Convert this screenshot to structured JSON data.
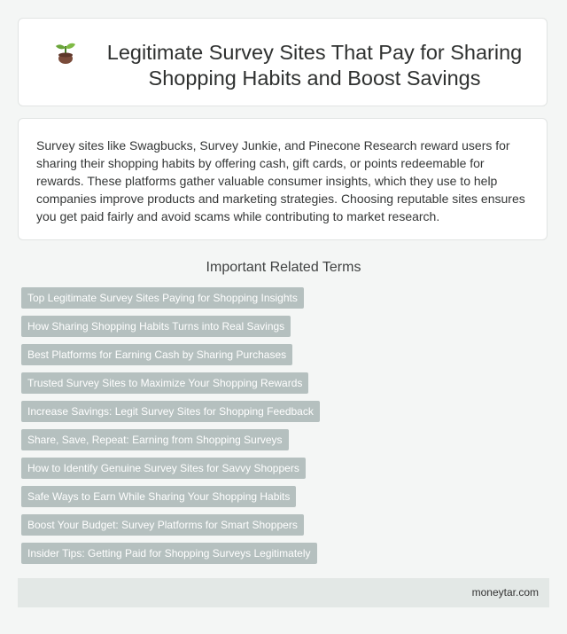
{
  "header": {
    "icon": "sprout-icon",
    "title": "Legitimate Survey Sites That Pay for Sharing Shopping Habits and Boost Savings"
  },
  "intro": {
    "text": "Survey sites like Swagbucks, Survey Junkie, and Pinecone Research reward users for sharing their shopping habits by offering cash, gift cards, or points redeemable for rewards. These platforms gather valuable consumer insights, which they use to help companies improve products and marketing strategies. Choosing reputable sites ensures you get paid fairly and avoid scams while contributing to market research."
  },
  "related": {
    "heading": "Important Related Terms",
    "terms": [
      "Top Legitimate Survey Sites Paying for Shopping Insights",
      "How Sharing Shopping Habits Turns into Real Savings",
      "Best Platforms for Earning Cash by Sharing Purchases",
      "Trusted Survey Sites to Maximize Your Shopping Rewards",
      "Increase Savings: Legit Survey Sites for Shopping Feedback",
      "Share, Save, Repeat: Earning from Shopping Surveys",
      "How to Identify Genuine Survey Sites for Savvy Shoppers",
      "Safe Ways to Earn While Sharing Your Shopping Habits",
      "Boost Your Budget: Survey Platforms for Smart Shoppers",
      "Insider Tips: Getting Paid for Shopping Surveys Legitimately"
    ]
  },
  "footer": {
    "site": "moneytar.com"
  },
  "colors": {
    "tag_background": "#b5c0bf",
    "footer_background": "#e3e8e6",
    "page_background": "#f4f6f5"
  }
}
